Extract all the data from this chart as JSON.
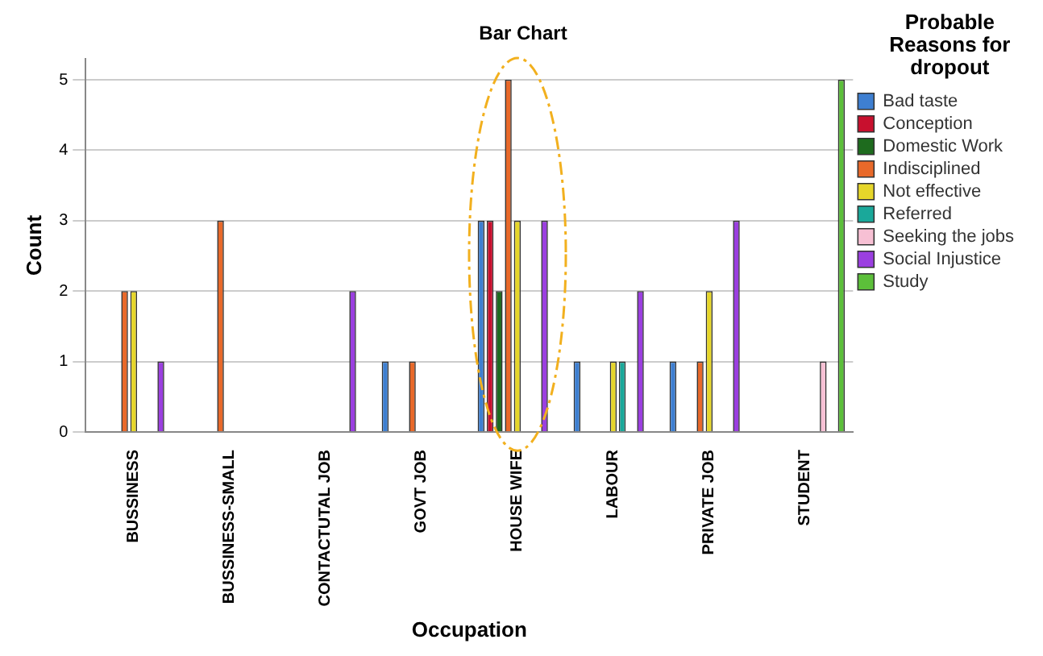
{
  "chart_data": {
    "type": "bar",
    "title": "Bar Chart",
    "xlabel": "Occupation",
    "ylabel": "Count",
    "legend_title": "Probable Reasons for dropout",
    "legend": "right",
    "categories": [
      "BUSSINESS",
      "BUSSINESS-SMALL",
      "CONTACTUTAL JOB",
      "GOVT JOB",
      "HOUSE WIFE",
      "LABOUR",
      "PRIVATE JOB",
      "STUDENT"
    ],
    "series": [
      {
        "name": "Bad taste",
        "color": "#3e7fd1",
        "values": [
          null,
          null,
          null,
          1,
          3,
          1,
          1,
          null
        ]
      },
      {
        "name": "Conception",
        "color": "#c8102e",
        "values": [
          null,
          null,
          null,
          null,
          3,
          null,
          null,
          null
        ]
      },
      {
        "name": "Domestic Work",
        "color": "#1e6b1e",
        "values": [
          null,
          null,
          null,
          null,
          2,
          null,
          null,
          null
        ]
      },
      {
        "name": "Indisciplined",
        "color": "#e8692a",
        "values": [
          2,
          3,
          null,
          1,
          5,
          null,
          1,
          null
        ]
      },
      {
        "name": "Not effective",
        "color": "#e6d62a",
        "values": [
          2,
          null,
          null,
          null,
          3,
          1,
          2,
          null
        ]
      },
      {
        "name": "Referred",
        "color": "#1aa89a",
        "values": [
          null,
          null,
          null,
          null,
          null,
          1,
          null,
          null
        ]
      },
      {
        "name": "Seeking the jobs",
        "color": "#f7c0d4",
        "values": [
          null,
          null,
          null,
          null,
          null,
          null,
          null,
          1
        ]
      },
      {
        "name": "Social Injustice",
        "color": "#9b3fe0",
        "values": [
          1,
          null,
          2,
          null,
          3,
          2,
          3,
          null
        ]
      },
      {
        "name": "Study",
        "color": "#5cbf3a",
        "values": [
          null,
          null,
          null,
          null,
          null,
          null,
          null,
          5
        ]
      }
    ],
    "ylim": [
      0,
      5.3
    ],
    "yticks": [
      0,
      1,
      2,
      3,
      4,
      5
    ],
    "grid": "y"
  }
}
